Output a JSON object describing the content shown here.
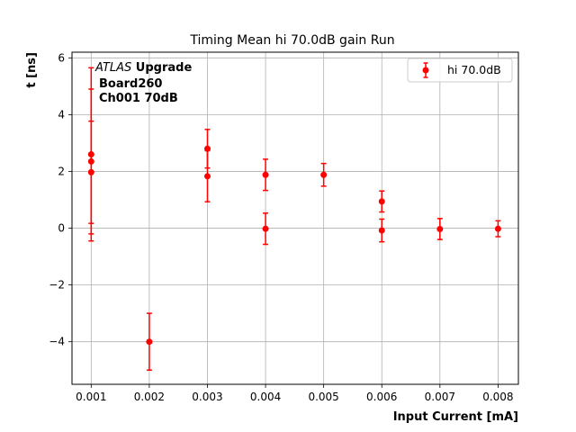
{
  "chart_data": {
    "type": "scatter",
    "title": "Timing Mean hi 70.0dB gain Run",
    "xlabel": "Input Current [mA]",
    "ylabel": "t [ns]",
    "xlim": [
      0.00067,
      0.00835
    ],
    "ylim": [
      -5.5,
      6.2
    ],
    "xticks": [
      0.001,
      0.002,
      0.003,
      0.004,
      0.005,
      0.006,
      0.007,
      0.008
    ],
    "xtick_labels": [
      "0.001",
      "0.002",
      "0.003",
      "0.004",
      "0.005",
      "0.006",
      "0.007",
      "0.008"
    ],
    "yticks": [
      -4,
      -2,
      0,
      2,
      4,
      6
    ],
    "ytick_labels": [
      "−4",
      "−2",
      "0",
      "2",
      "4",
      "6"
    ],
    "grid": true,
    "legend_position": "top-right",
    "annotation": {
      "line1_italic": "ATLAS",
      "line1_bold": " Upgrade",
      "line2": "Board260",
      "line3": "Ch001 70dB"
    },
    "series": [
      {
        "name": "hi 70.0dB",
        "color": "#ff0000",
        "points": [
          {
            "x": 0.001,
            "y": 2.6,
            "err": 3.05
          },
          {
            "x": 0.001,
            "y": 2.35,
            "err": 2.55
          },
          {
            "x": 0.001,
            "y": 1.97,
            "err": 1.8
          },
          {
            "x": 0.002,
            "y": -4.0,
            "err": 1.0
          },
          {
            "x": 0.003,
            "y": 2.8,
            "err": 0.68
          },
          {
            "x": 0.003,
            "y": 1.83,
            "err": 0.9
          },
          {
            "x": 0.004,
            "y": 1.88,
            "err": 0.55
          },
          {
            "x": 0.004,
            "y": -0.02,
            "err": 0.55
          },
          {
            "x": 0.005,
            "y": 1.88,
            "err": 0.4
          },
          {
            "x": 0.006,
            "y": 0.94,
            "err": 0.37
          },
          {
            "x": 0.006,
            "y": -0.08,
            "err": 0.4
          },
          {
            "x": 0.007,
            "y": -0.03,
            "err": 0.37
          },
          {
            "x": 0.008,
            "y": -0.02,
            "err": 0.28
          }
        ]
      }
    ]
  }
}
